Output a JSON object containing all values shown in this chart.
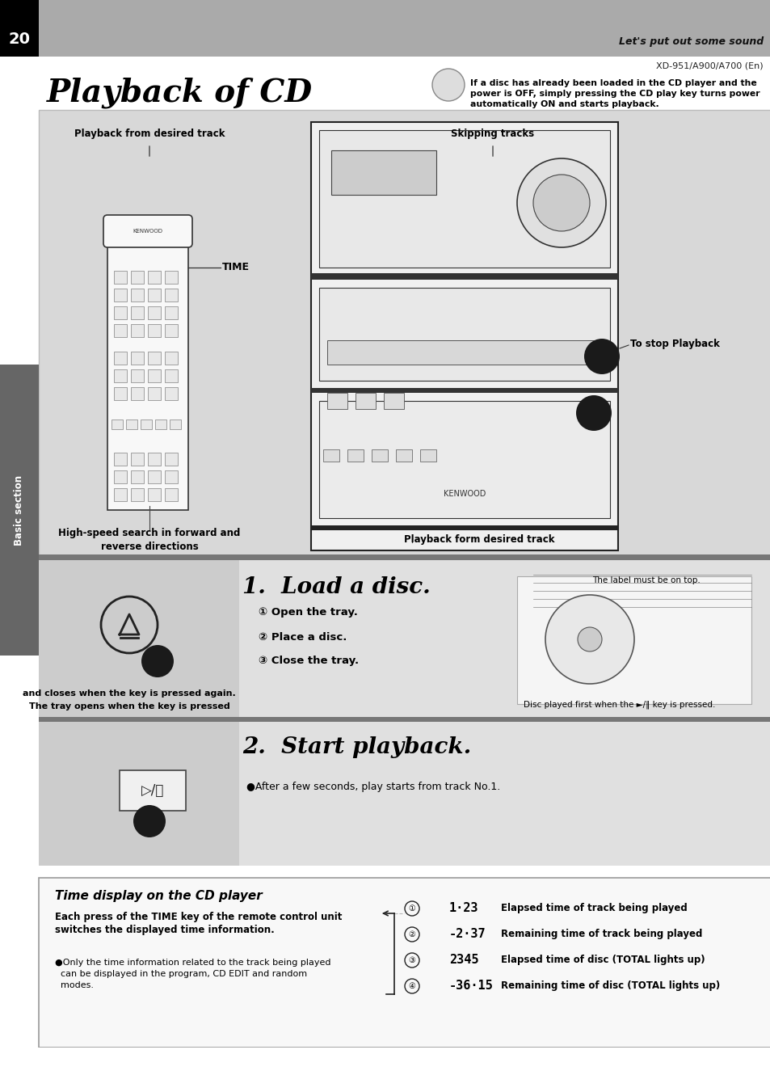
{
  "page_number": "20",
  "tagline": "Let's put out some sound",
  "model": "XD-951/A900/A700 (En)",
  "main_title": "Playback of CD",
  "notice_text": "If a disc has already been loaded in the CD player and the\npower is OFF, simply pressing the CD play key turns power\nautomatically ON and starts playback.",
  "label_playback_desired": "Playback from desired track",
  "label_skipping": "Skipping tracks",
  "label_time": "TIME",
  "label_stop": "To stop Playback",
  "label_highspeed": "High-speed search in forward and\nreverse directions",
  "label_playback_form": "Playback form desired track",
  "step1_title": "1.  Load a disc.",
  "step1_b1": "① Open the tray.",
  "step1_b2": "② Place a disc.",
  "step1_b3": "③ Close the tray.",
  "step1_note_left1": "The tray opens when the key is pressed",
  "step1_note_left2": "and closes when the key is pressed again.",
  "step1_note_right": "Disc played first when the ►/‖ key is pressed.",
  "label_must_be": "The label must be on top.",
  "step2_title": "2.  Start playback.",
  "step2_bullet": "●After a few seconds, play starts from track No.1.",
  "time_display_title": "Time display on the CD player",
  "time_display_left1": "Each press of the TIME key of the remote control unit",
  "time_display_left2": "switches the displayed time information.",
  "time_display_note1": "●Only the time information related to the track being played",
  "time_display_note2": "  can be displayed in the program, CD EDIT and random",
  "time_display_note3": "  modes.",
  "time_vals": [
    "1·23",
    "-2·37",
    "2345",
    "-36·15"
  ],
  "time_nums": [
    "①",
    "②",
    "③",
    "④"
  ],
  "time_descs": [
    "Elapsed time of track being played",
    "Remaining time of track being played",
    "Elapsed time of disc (TOTAL lights up)",
    "Remaining time of disc (TOTAL lights up)"
  ],
  "sidebar_text": "Basic section",
  "header_bg": "#aaaaaa",
  "header_black": "#000000",
  "page_bg": "#ffffff",
  "diagram_bg": "#d8d8d8",
  "step_bg": "#e0e0e0",
  "sidebar_bg": "#666666",
  "divider_dark": "#888888",
  "text_black": "#000000",
  "border_color": "#888888"
}
